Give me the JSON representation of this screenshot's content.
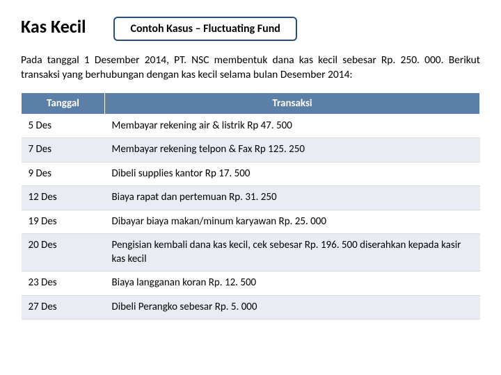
{
  "title": "Kas Kecil",
  "subtitle": "Contoh Kasus – Fluctuating Fund",
  "paragraph": "Pada tanggal 1 Desember 2014, PT. NSC membentuk dana kas kecil sebesar Rp. 250. 000. Berikut transaksi yang berhubungan dengan kas kecil selama bulan Desember 2014:",
  "table": {
    "columns": [
      "Tanggal",
      "Transaksi"
    ],
    "header_bg": "#5b7fa6",
    "header_color": "#ffffff",
    "row_alt_bg": "#e9edf3",
    "rows": [
      [
        "5 Des",
        "Membayar rekening air & listrik Rp 47. 500"
      ],
      [
        "7 Des",
        "Membayar rekening telpon & Fax Rp 125. 250"
      ],
      [
        "9 Des",
        "Dibeli supplies kantor Rp 17. 500"
      ],
      [
        "12 Des",
        "Biaya rapat dan pertemuan Rp. 31. 250"
      ],
      [
        "19 Des",
        "Dibayar biaya makan/minum karyawan Rp. 25. 000"
      ],
      [
        "20 Des",
        "Pengisian kembali dana kas kecil, cek sebesar Rp. 196. 500 diserahkan kepada kasir kas kecil"
      ],
      [
        "23 Des",
        "Biaya langganan koran Rp. 12. 500"
      ],
      [
        "27 Des",
        "Dibeli Perangko sebesar Rp. 5. 000"
      ]
    ]
  }
}
